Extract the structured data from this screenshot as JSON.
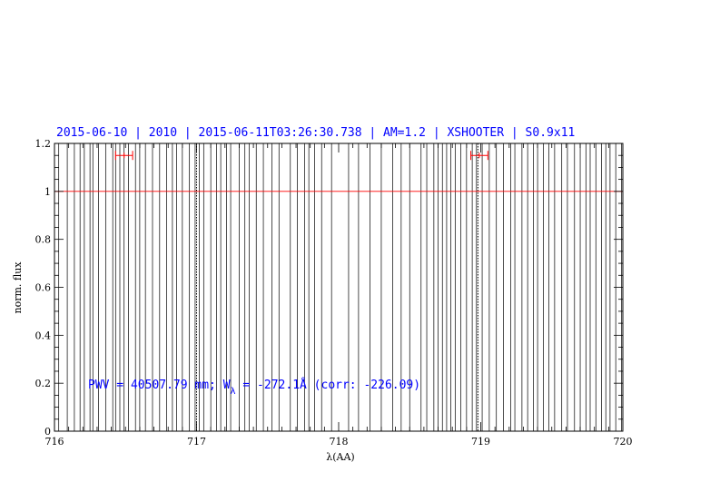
{
  "chart_data": {
    "type": "line",
    "title": "2015-06-10 | 2010 | 2015-06-11T03:26:30.738 | AM=1.2 | XSHOOTER | S0.9x11",
    "xlabel": "λ(AA)",
    "ylabel": "norm. flux",
    "xlim": [
      716,
      720
    ],
    "ylim": [
      0,
      1.2
    ],
    "x_ticks": [
      "716",
      "717",
      "718",
      "719",
      "720"
    ],
    "y_ticks": [
      "0",
      "0.2",
      "0.4",
      "0.6",
      "0.8",
      "1",
      "1.2"
    ],
    "continuum_level": 1,
    "annotation": {
      "pre": "PWV = 40507.79 mm; W",
      "sub": "λ",
      "post": " = -272.1Å (corr: -226.09)"
    },
    "marker_lines_x": [
      717.0,
      718.98
    ],
    "error_bars": [
      {
        "x": 716.49,
        "y": 1.15,
        "xerr": 0.06
      },
      {
        "x": 718.99,
        "y": 1.15,
        "xerr": 0.06
      }
    ],
    "spectrum_spikes_x": [
      716.03,
      716.09,
      716.14,
      716.18,
      716.21,
      716.25,
      716.27,
      716.31,
      716.36,
      716.41,
      716.43,
      716.46,
      716.49,
      716.52,
      716.57,
      716.6,
      716.64,
      716.69,
      716.74,
      716.79,
      716.83,
      716.86,
      716.9,
      716.95,
      716.99,
      717.02,
      717.05,
      717.1,
      717.14,
      717.17,
      717.21,
      717.24,
      717.3,
      717.34,
      717.37,
      717.42,
      717.47,
      717.53,
      717.58,
      717.66,
      717.71,
      717.76,
      717.79,
      717.83,
      717.88,
      717.95,
      718.07,
      718.14,
      718.22,
      718.3,
      718.38,
      718.44,
      718.5,
      718.58,
      718.62,
      718.67,
      718.7,
      718.73,
      718.76,
      718.79,
      718.82,
      718.86,
      718.9,
      718.94,
      718.97,
      719.01,
      719.06,
      719.11,
      719.16,
      719.21,
      719.24,
      719.29,
      719.33,
      719.37,
      719.4,
      719.44,
      719.48,
      719.52,
      719.57,
      719.61,
      719.66,
      719.7,
      719.74,
      719.77,
      719.81,
      719.85,
      719.88,
      719.91,
      719.95,
      719.99
    ],
    "colors": {
      "spectrum": "#000000",
      "continuum": "#ff0000",
      "error_bars": "#ff0000",
      "title": "#0000ff",
      "annotation": "#0000ff"
    },
    "grid": false
  }
}
